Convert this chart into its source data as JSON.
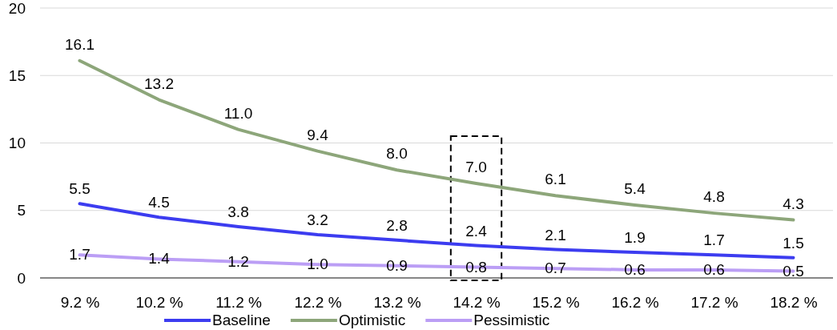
{
  "chart_data": {
    "type": "line",
    "categories": [
      "9.2 %",
      "10.2 %",
      "11.2 %",
      "12.2 %",
      "13.2 %",
      "14.2 %",
      "15.2 %",
      "16.2 %",
      "17.2 %",
      "18.2 %"
    ],
    "series": [
      {
        "name": "Baseline",
        "color": "#3c3cf0",
        "values": [
          5.5,
          4.5,
          3.8,
          3.2,
          2.8,
          2.4,
          2.1,
          1.9,
          1.7,
          1.5
        ],
        "value_labels": [
          "5.5",
          "4.5",
          "3.8",
          "3.2",
          "2.8",
          "2.4",
          "2.1",
          "1.9",
          "1.7",
          "1.5"
        ]
      },
      {
        "name": "Optimistic",
        "color": "#8da67a",
        "values": [
          16.1,
          13.2,
          11.0,
          9.4,
          8.0,
          7.0,
          6.1,
          5.4,
          4.8,
          4.3
        ],
        "value_labels": [
          "16.1",
          "13.2",
          "11.0",
          "9.4",
          "8.0",
          "7.0",
          "6.1",
          "5.4",
          "4.8",
          "4.3"
        ]
      },
      {
        "name": "Pessimistic",
        "color": "#bb9ef5",
        "values": [
          1.7,
          1.4,
          1.2,
          1.0,
          0.9,
          0.8,
          0.7,
          0.6,
          0.6,
          0.5
        ],
        "value_labels": [
          "1.7",
          "1.4",
          "1.2",
          "1.0",
          "0.9",
          "0.8",
          "0.7",
          "0.6",
          "0.6",
          "0.5"
        ]
      }
    ],
    "ylim": [
      0,
      20
    ],
    "yticks": [
      0,
      5,
      10,
      15,
      20
    ],
    "grid": "y",
    "legend": "bottom"
  }
}
